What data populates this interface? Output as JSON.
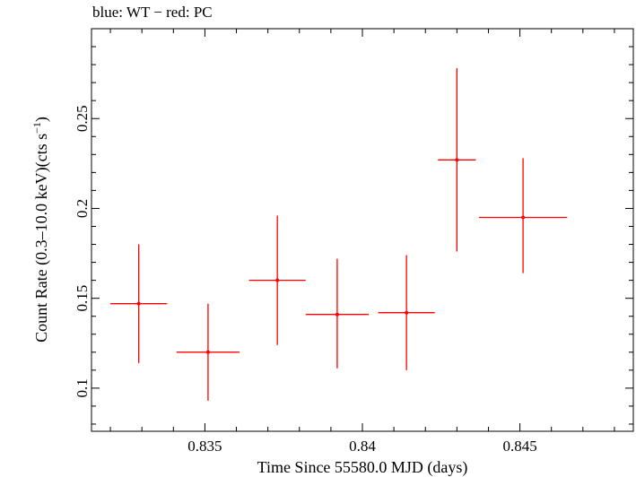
{
  "legend_text": "blue: WT − red: PC",
  "chart_data": {
    "type": "scatter",
    "title": "",
    "xlabel": "Time Since 55580.0 MJD (days)",
    "ylabel_main": "Count Rate (0.3–10.0 keV)(cts s",
    "ylabel_sup": "−1",
    "ylabel_close": ")",
    "xlim": [
      0.8314,
      0.8486
    ],
    "ylim": [
      0.076,
      0.3
    ],
    "x_ticks": [
      0.835,
      0.84,
      0.845
    ],
    "x_tick_labels": [
      "0.835",
      "0.84",
      "0.845"
    ],
    "y_ticks": [
      0.1,
      0.15,
      0.2,
      0.25
    ],
    "y_tick_labels": [
      "0.1",
      "0.15",
      "0.2",
      "0.25"
    ],
    "grid": false,
    "series": [
      {
        "name": "PC",
        "color": "#ff0000",
        "points": [
          {
            "x": 0.8329,
            "xerr": 0.0009,
            "y": 0.147,
            "yerr": [
              0.033,
              0.033
            ]
          },
          {
            "x": 0.8351,
            "xerr": 0.001,
            "y": 0.12,
            "yerr": [
              0.027,
              0.027
            ]
          },
          {
            "x": 0.8373,
            "xerr": 0.0009,
            "y": 0.16,
            "yerr": [
              0.036,
              0.036
            ]
          },
          {
            "x": 0.8392,
            "xerr": 0.001,
            "y": 0.141,
            "yerr": [
              0.031,
              0.03
            ]
          },
          {
            "x": 0.8414,
            "xerr": 0.0009,
            "y": 0.142,
            "yerr": [
              0.032,
              0.032
            ]
          },
          {
            "x": 0.843,
            "xerr": 0.0006,
            "y": 0.227,
            "yerr": [
              0.051,
              0.051
            ]
          },
          {
            "x": 0.8451,
            "xerr": 0.0014,
            "y": 0.195,
            "yerr": [
              0.033,
              0.031
            ]
          }
        ]
      }
    ]
  }
}
